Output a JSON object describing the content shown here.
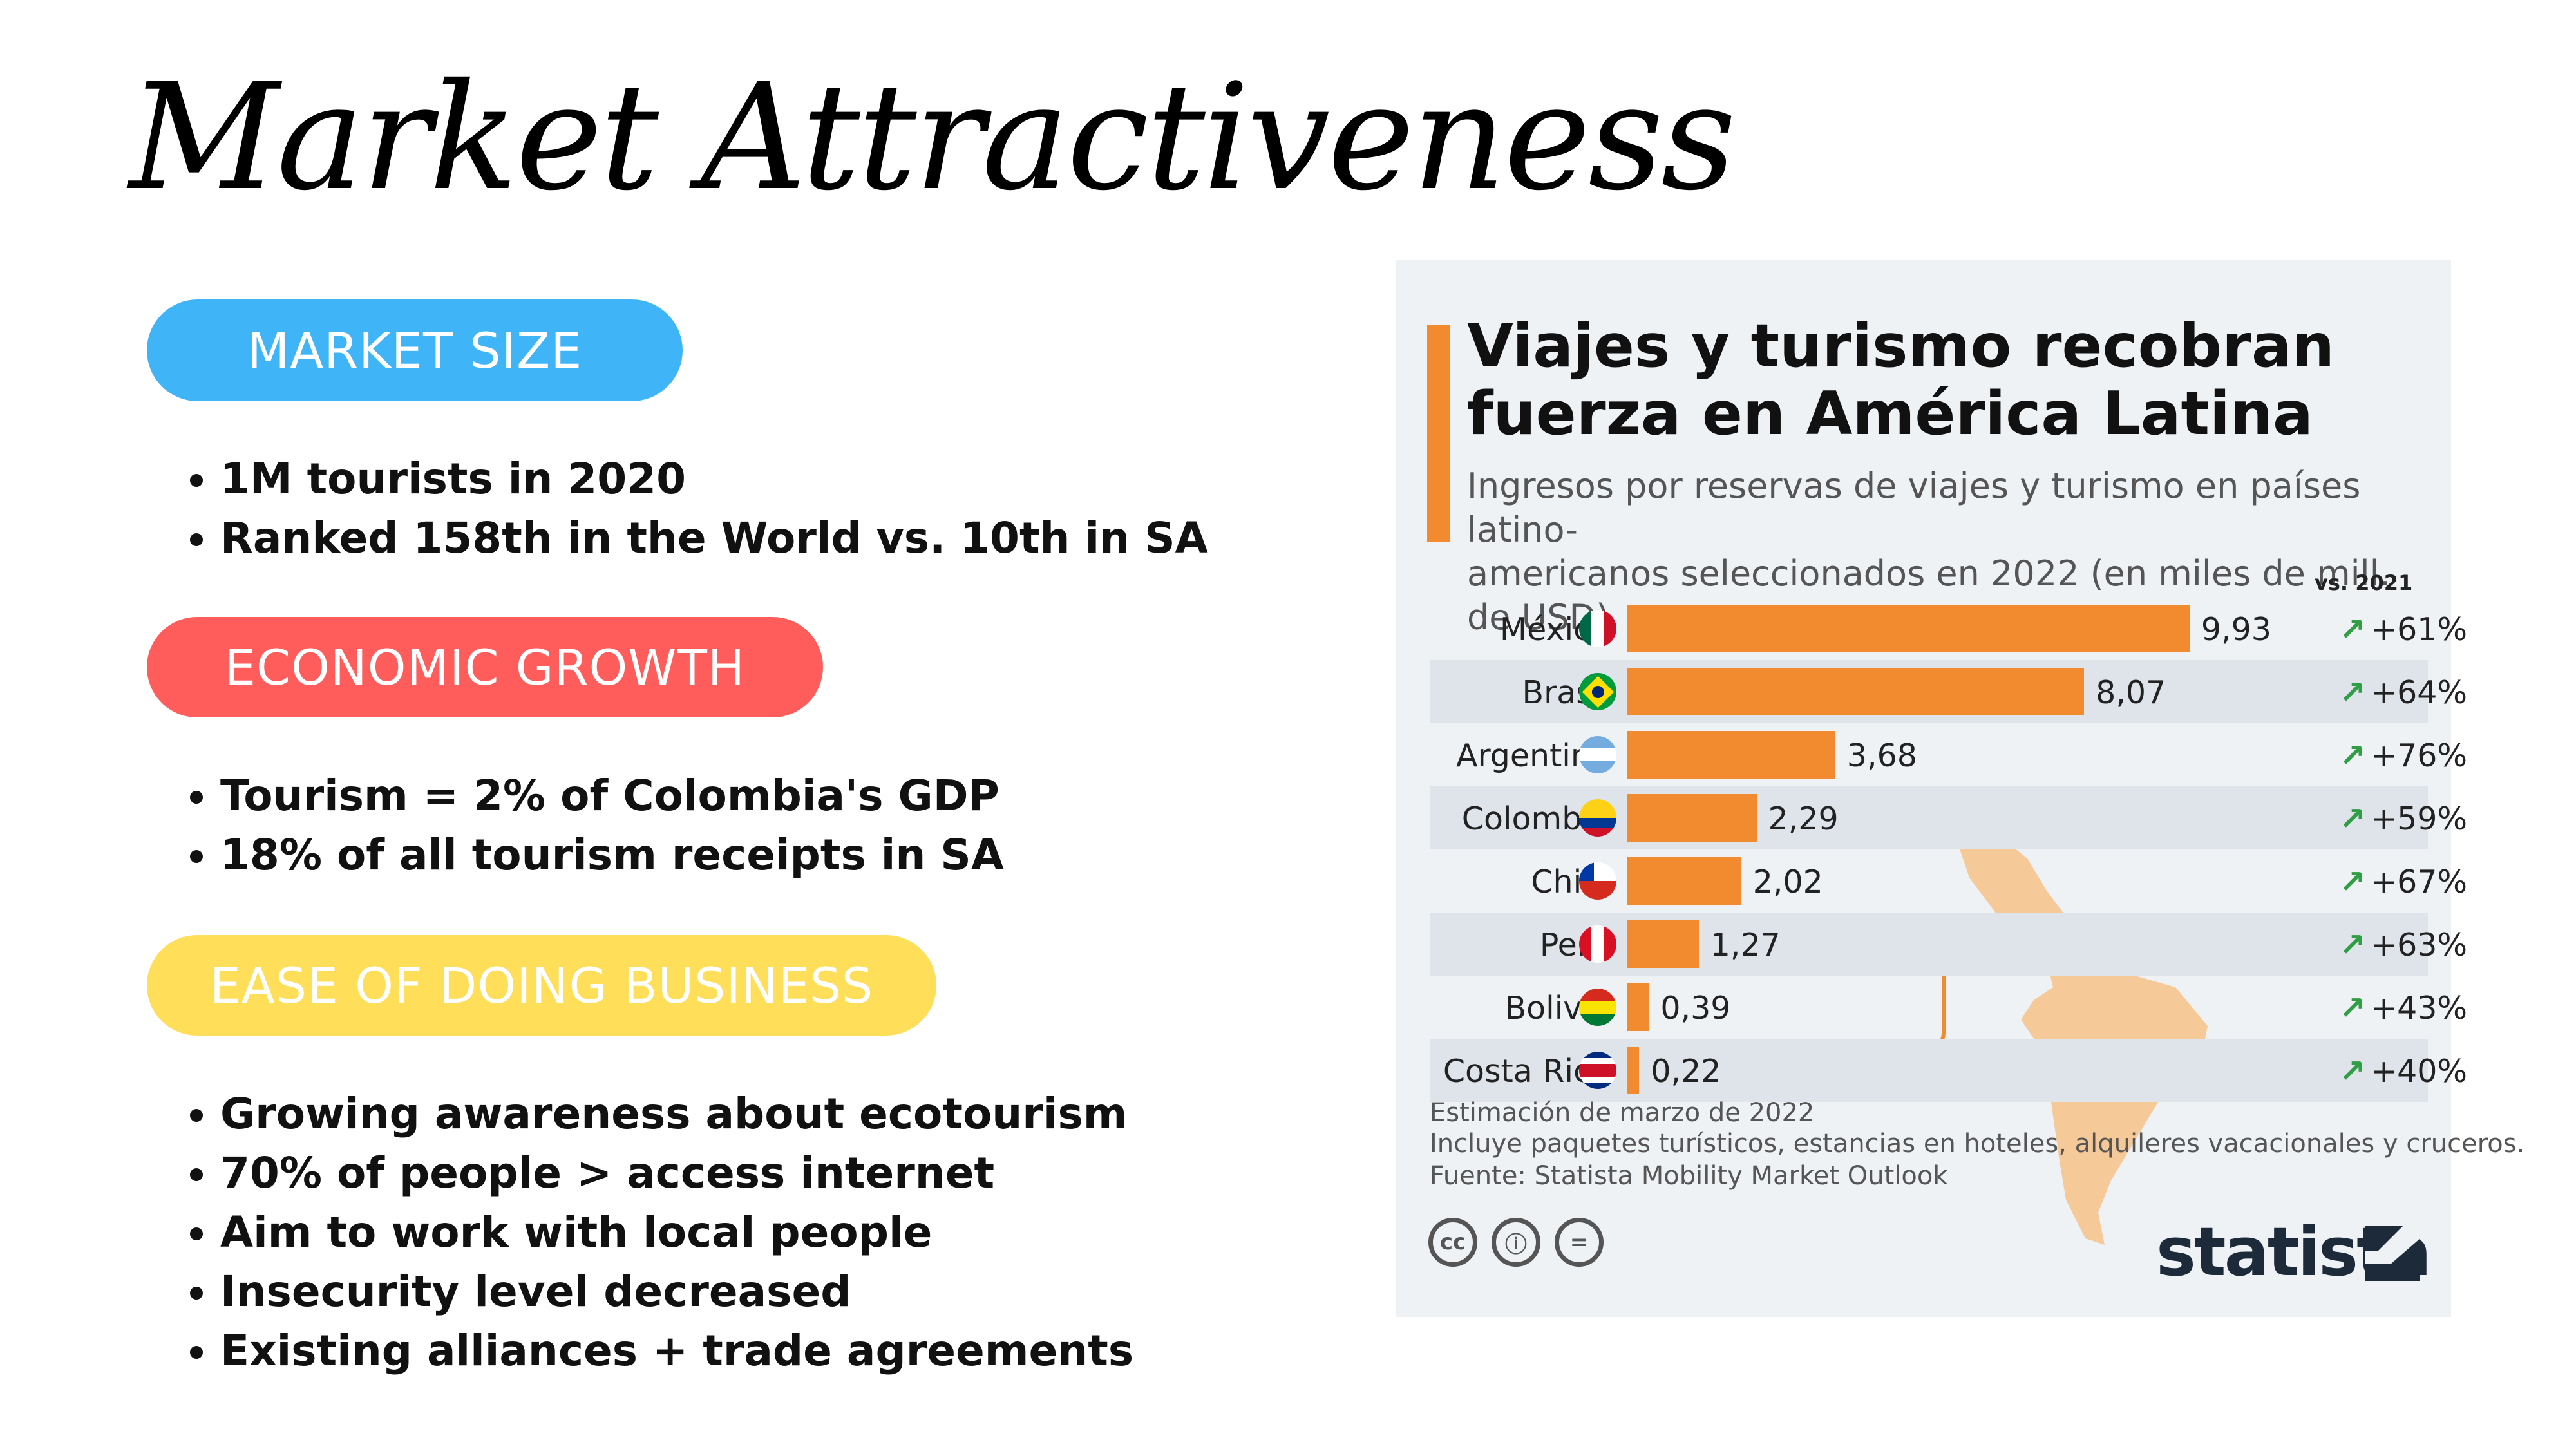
{
  "page": {
    "title": "Market Attractiveness"
  },
  "sections": {
    "market_size": {
      "label": "MARKET SIZE",
      "bullets": [
        "1M tourists in 2020",
        "Ranked 158th in the World vs. 10th in SA"
      ]
    },
    "economic_growth": {
      "label": "ECONOMIC GROWTH",
      "bullets": [
        "Tourism = 2% of Colombia's GDP",
        "18% of all tourism receipts in SA"
      ]
    },
    "ease_of_business": {
      "label": "EASE OF DOING BUSINESS",
      "bullets": [
        "Growing awareness about ecotourism",
        "70% of people > access internet",
        "Aim to work with local people",
        "Insecurity level decreased",
        "Existing alliances + trade agreements"
      ]
    }
  },
  "colors": {
    "market_size": "#3fb5f8",
    "economic_growth": "#ff5c5c",
    "ease_of_business": "#ffde59",
    "bar": "#f28b30",
    "trend": "#2f9e44"
  },
  "infographic": {
    "title_line1": "Viajes y turismo recobran",
    "title_line2": "fuerza en América Latina",
    "subtitle_line1": "Ingresos por reservas de viajes y turismo en países latino-",
    "subtitle_line2": "americanos seleccionados en 2022 (en miles de mill. de USD)",
    "change_header": "vs. 2021",
    "footnote1": "Estimación de marzo de 2022",
    "footnote2": "Incluye paquetes turísticos, estancias en hoteles, alquileres vacacionales y cruceros.",
    "source": "Fuente: Statista Mobility Market Outlook",
    "license_icons": [
      "cc-icon",
      "person-icon",
      "equals-icon"
    ],
    "license_glyphs": [
      "cc",
      "ⓘ",
      "="
    ],
    "brand": "statista"
  },
  "chart_data": {
    "type": "bar",
    "orientation": "horizontal",
    "title": "Viajes y turismo recobran fuerza en América Latina",
    "xlabel": "",
    "ylabel": "",
    "xlim": [
      0,
      10
    ],
    "categories": [
      "México",
      "Brasil",
      "Argentina",
      "Colombia",
      "Chile",
      "Perú",
      "Bolivia",
      "Costa Rica"
    ],
    "values": [
      9.93,
      8.07,
      3.68,
      2.29,
      2.02,
      1.27,
      0.39,
      0.22
    ],
    "value_labels": [
      "9,93",
      "8,07",
      "3,68",
      "2,29",
      "2,02",
      "1,27",
      "0,39",
      "0,22"
    ],
    "change_vs_2021": [
      "+61%",
      "+64%",
      "+76%",
      "+59%",
      "+67%",
      "+63%",
      "+43%",
      "+40%"
    ]
  }
}
